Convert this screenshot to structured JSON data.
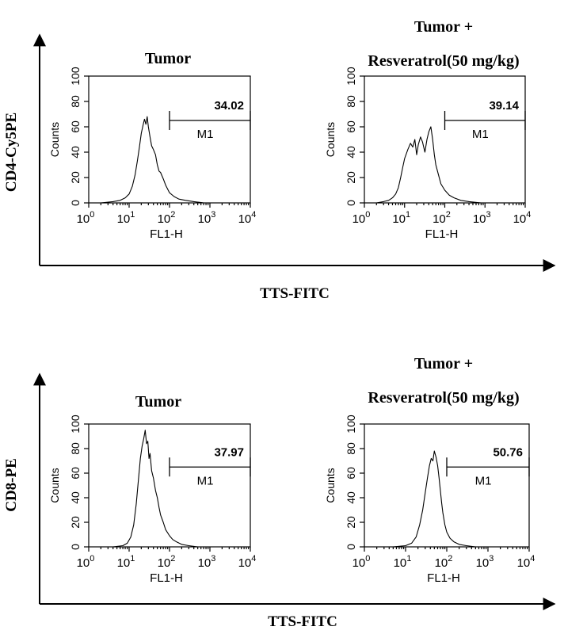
{
  "colors": {
    "ink": "#000000",
    "background": "#ffffff"
  },
  "chart_data": [
    {
      "type": "histogram",
      "panel": "top",
      "title": "Tumor",
      "subtitle": "",
      "group_ylabel": "CD4-Cy5PE",
      "group_xlabel": "TTS-FITC",
      "xlabel": "FL1-H",
      "ylabel": "Counts",
      "xscale": "log",
      "xlim": [
        1,
        10000
      ],
      "ylim": [
        0,
        100
      ],
      "yticks": [
        0,
        20,
        40,
        60,
        80,
        100
      ],
      "xticks": [
        "10",
        "10",
        "10",
        "10",
        "10"
      ],
      "xtick_exponents": [
        "0",
        "1",
        "2",
        "3",
        "4"
      ],
      "gate": {
        "label": "M1",
        "percent": "34.02",
        "range": [
          100,
          10000
        ]
      },
      "series": [
        {
          "name": "Tumor",
          "x": [
            1,
            2,
            4,
            6,
            8,
            10,
            12,
            14,
            16,
            18,
            20,
            22,
            24,
            26,
            28,
            30,
            33,
            36,
            40,
            45,
            50,
            55,
            60,
            70,
            80,
            100,
            130,
            170,
            250,
            400,
            700,
            1000,
            3000,
            10000
          ],
          "y": [
            0,
            0,
            1,
            2,
            4,
            7,
            13,
            22,
            33,
            44,
            55,
            61,
            66,
            62,
            68,
            60,
            52,
            45,
            42,
            38,
            30,
            25,
            24,
            19,
            14,
            8,
            5,
            3,
            2,
            1,
            0,
            0,
            0,
            0
          ]
        }
      ]
    },
    {
      "type": "histogram",
      "panel": "top",
      "title": "Tumor +",
      "subtitle": "Resveratrol(50 mg/kg)",
      "group_ylabel": "CD4-Cy5PE",
      "group_xlabel": "TTS-FITC",
      "xlabel": "FL1-H",
      "ylabel": "Counts",
      "xscale": "log",
      "xlim": [
        1,
        10000
      ],
      "ylim": [
        0,
        100
      ],
      "yticks": [
        0,
        20,
        40,
        60,
        80,
        100
      ],
      "xticks": [
        "10",
        "10",
        "10",
        "10",
        "10"
      ],
      "xtick_exponents": [
        "0",
        "1",
        "2",
        "3",
        "4"
      ],
      "gate": {
        "label": "M1",
        "percent": "39.14",
        "range": [
          100,
          10000
        ]
      },
      "series": [
        {
          "name": "Tumor + Resveratrol",
          "x": [
            1,
            2,
            3,
            4,
            5,
            6,
            7,
            8,
            9,
            10,
            12,
            14,
            16,
            18,
            20,
            22,
            25,
            28,
            32,
            36,
            40,
            45,
            50,
            55,
            60,
            70,
            80,
            100,
            130,
            170,
            250,
            400,
            800,
            10000
          ],
          "y": [
            0,
            0,
            1,
            2,
            4,
            7,
            12,
            20,
            28,
            35,
            42,
            47,
            44,
            50,
            38,
            46,
            52,
            48,
            40,
            50,
            56,
            60,
            50,
            38,
            30,
            22,
            15,
            10,
            6,
            4,
            2,
            1,
            0,
            0
          ]
        }
      ]
    },
    {
      "type": "histogram",
      "panel": "bottom",
      "title": "Tumor",
      "subtitle": "",
      "group_ylabel": "CD8-PE",
      "group_xlabel": "TTS-FITC",
      "xlabel": "FL1-H",
      "ylabel": "Counts",
      "xscale": "log",
      "xlim": [
        1,
        10000
      ],
      "ylim": [
        0,
        100
      ],
      "yticks": [
        0,
        20,
        40,
        60,
        80,
        100
      ],
      "xticks": [
        "10",
        "10",
        "10",
        "10",
        "10"
      ],
      "xtick_exponents": [
        "0",
        "1",
        "2",
        "3",
        "4"
      ],
      "gate": {
        "label": "M1",
        "percent": "37.97",
        "range": [
          100,
          10000
        ]
      },
      "series": [
        {
          "name": "Tumor",
          "x": [
            1,
            4,
            7,
            9,
            11,
            13,
            15,
            17,
            19,
            21,
            23,
            25,
            27,
            29,
            31,
            33,
            36,
            40,
            45,
            50,
            55,
            60,
            70,
            80,
            100,
            120,
            150,
            200,
            300,
            500,
            1000,
            10000
          ],
          "y": [
            0,
            0,
            1,
            3,
            8,
            18,
            35,
            55,
            72,
            82,
            88,
            95,
            84,
            86,
            72,
            76,
            62,
            56,
            46,
            40,
            32,
            26,
            20,
            14,
            9,
            6,
            4,
            2,
            1,
            0,
            0,
            0
          ]
        }
      ]
    },
    {
      "type": "histogram",
      "panel": "bottom",
      "title": "Tumor +",
      "subtitle": "Resveratrol(50 mg/kg)",
      "group_ylabel": "CD8-PE",
      "group_xlabel": "TTS-FITC",
      "xlabel": "FL1-H",
      "ylabel": "Counts",
      "xscale": "log",
      "xlim": [
        1,
        10000
      ],
      "ylim": [
        0,
        100
      ],
      "yticks": [
        0,
        20,
        40,
        60,
        80,
        100
      ],
      "xticks": [
        "10",
        "10",
        "10",
        "10",
        "10"
      ],
      "xtick_exponents": [
        "0",
        "1",
        "2",
        "3",
        "4"
      ],
      "gate": {
        "label": "M1",
        "percent": "50.76",
        "range": [
          100,
          10000
        ]
      },
      "series": [
        {
          "name": "Tumor + Resveratrol",
          "x": [
            1,
            5,
            10,
            14,
            18,
            22,
            26,
            30,
            34,
            38,
            42,
            46,
            50,
            55,
            60,
            65,
            70,
            75,
            80,
            90,
            100,
            120,
            150,
            200,
            300,
            500,
            10000
          ],
          "y": [
            0,
            0,
            1,
            3,
            8,
            18,
            30,
            44,
            56,
            66,
            72,
            70,
            78,
            73,
            66,
            56,
            46,
            36,
            28,
            18,
            12,
            7,
            4,
            2,
            1,
            0,
            0
          ]
        }
      ]
    }
  ]
}
